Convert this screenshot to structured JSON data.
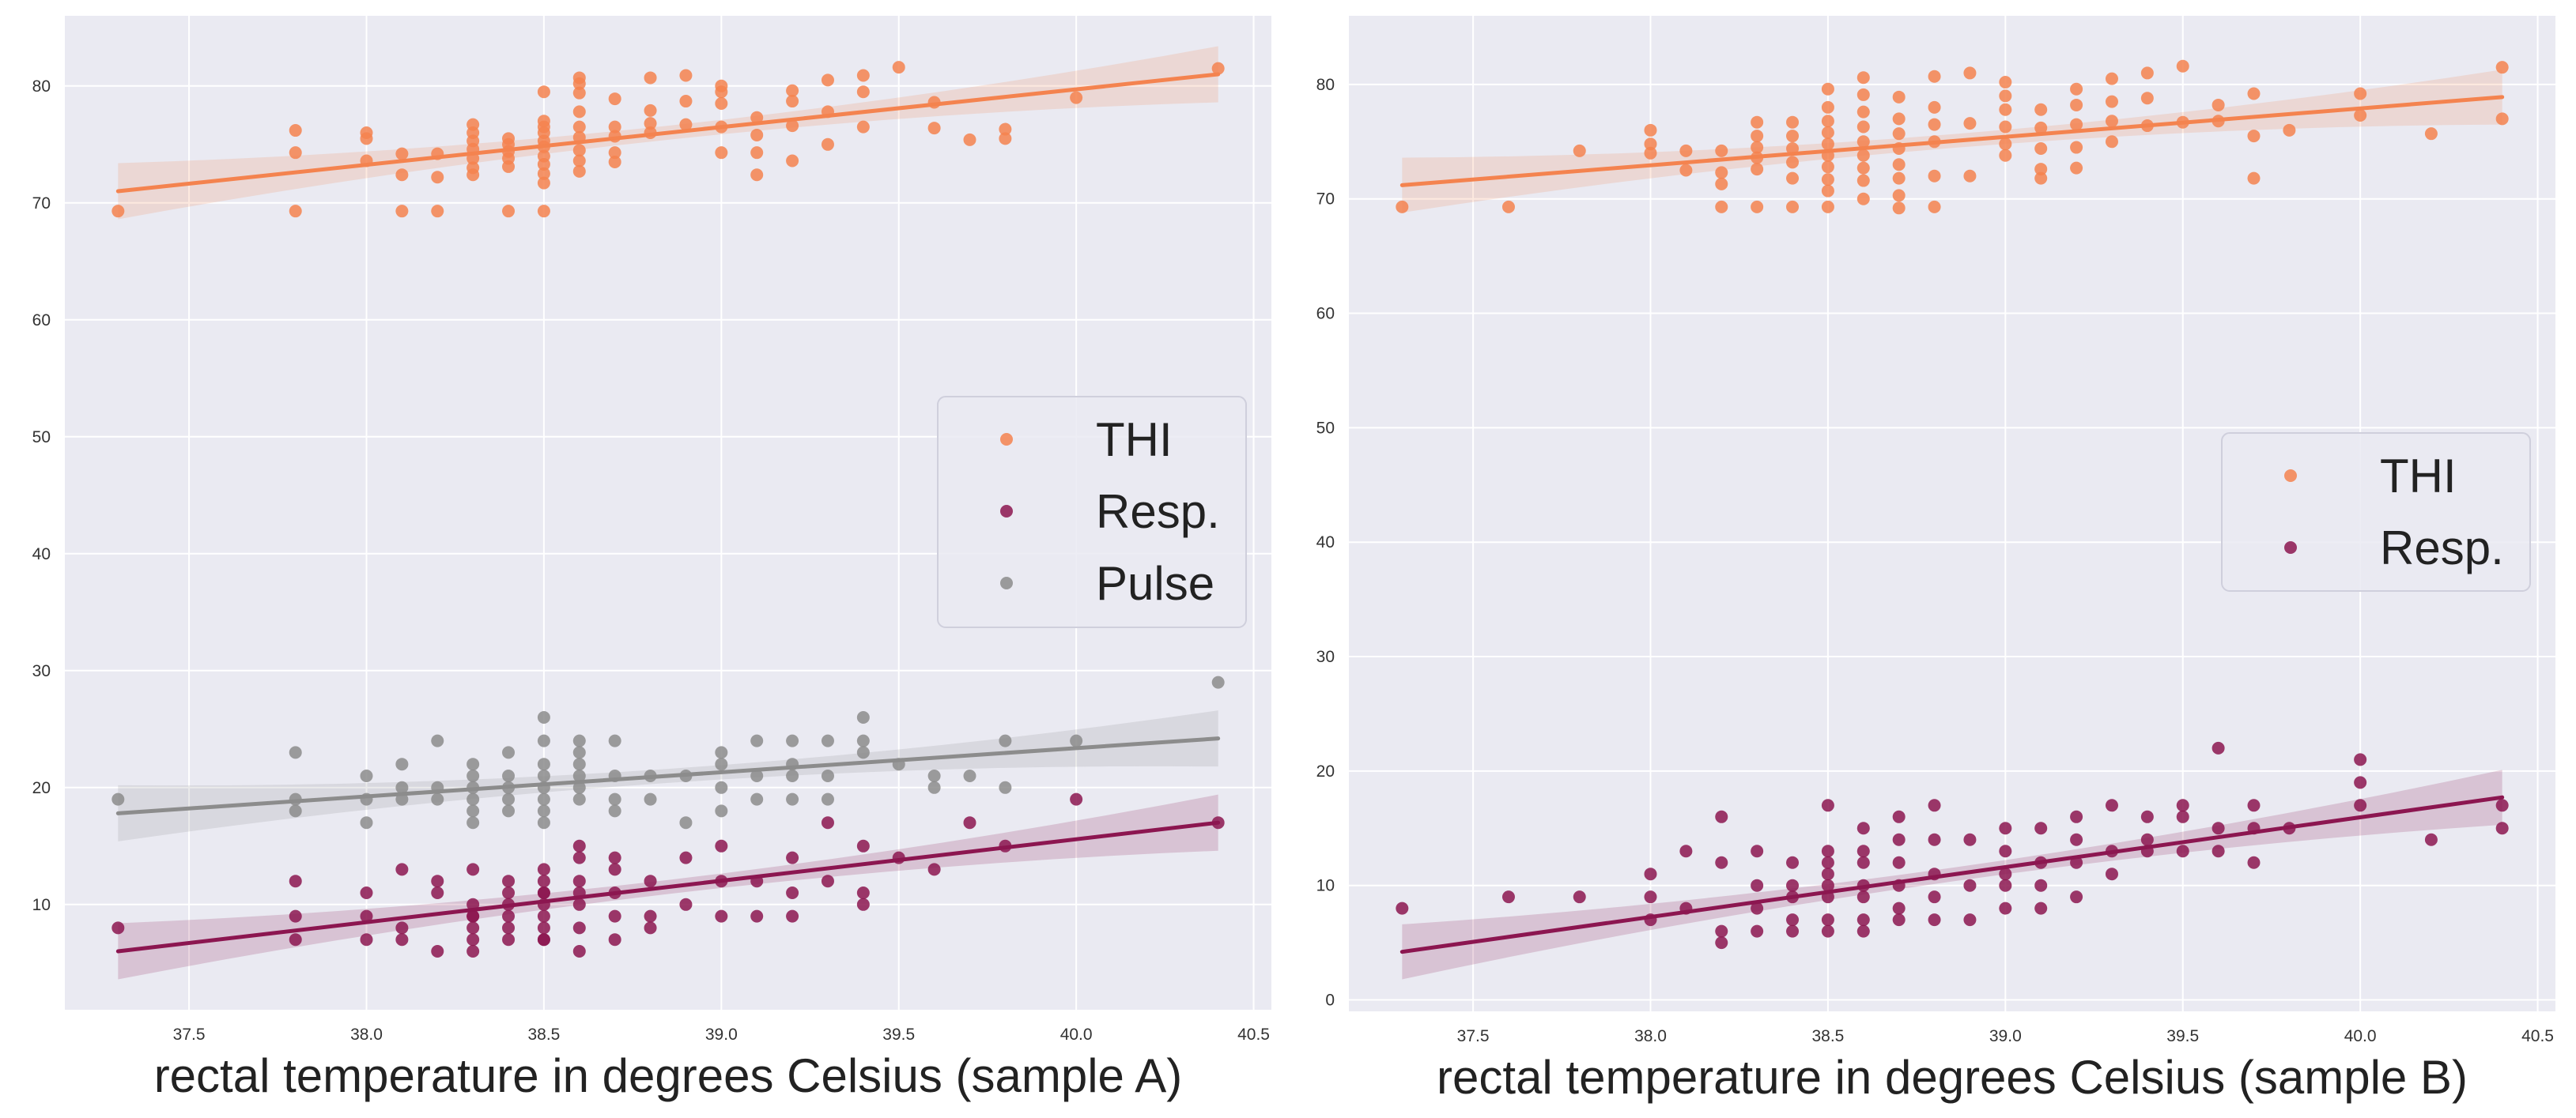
{
  "chart_data": [
    {
      "type": "scatter",
      "xlabel": "rectal temperature in degrees Celsius (sample A)",
      "ylabel": "",
      "xlim": [
        37.15,
        40.55
      ],
      "ylim": [
        1,
        86
      ],
      "xticks": [
        37.5,
        38.0,
        38.5,
        39.0,
        39.5,
        40.0,
        40.5
      ],
      "xtick_labels": [
        "37.5",
        "38.0",
        "38.5",
        "39.0",
        "39.5",
        "40.0",
        "40.5"
      ],
      "yticks": [
        10,
        20,
        30,
        40,
        50,
        60,
        70,
        80
      ],
      "ytick_labels": [
        "10",
        "20",
        "30",
        "40",
        "50",
        "60",
        "70",
        "80"
      ],
      "grid": true,
      "legend_position": "center-right",
      "series": [
        {
          "name": "THI",
          "color": "#f4834f",
          "regression": {
            "x": [
              37.3,
              40.4
            ],
            "y": [
              71.0,
              81.0
            ]
          },
          "x": [
            37.3,
            37.8,
            37.8,
            37.8,
            38.0,
            38.0,
            38.0,
            38.1,
            38.1,
            38.1,
            38.2,
            38.2,
            38.2,
            38.3,
            38.3,
            38.3,
            38.3,
            38.3,
            38.3,
            38.3,
            38.4,
            38.4,
            38.4,
            38.4,
            38.4,
            38.4,
            38.5,
            38.5,
            38.5,
            38.5,
            38.5,
            38.5,
            38.5,
            38.5,
            38.5,
            38.5,
            38.5,
            38.6,
            38.6,
            38.6,
            38.6,
            38.6,
            38.6,
            38.6,
            38.6,
            38.6,
            38.7,
            38.7,
            38.7,
            38.7,
            38.7,
            38.8,
            38.8,
            38.8,
            38.8,
            38.9,
            38.9,
            38.9,
            39.0,
            39.0,
            39.0,
            39.0,
            39.0,
            39.1,
            39.1,
            39.1,
            39.1,
            39.2,
            39.2,
            39.2,
            39.2,
            39.3,
            39.3,
            39.3,
            39.4,
            39.4,
            39.4,
            39.5,
            39.6,
            39.6,
            39.7,
            39.8,
            39.8,
            40.0,
            40.4
          ],
          "y": [
            69.3,
            76.2,
            74.3,
            69.3,
            76.0,
            75.5,
            73.6,
            74.2,
            72.4,
            69.3,
            74.2,
            72.2,
            69.3,
            76.7,
            76.0,
            75.3,
            74.6,
            73.8,
            73.0,
            72.4,
            75.5,
            75.0,
            74.4,
            73.8,
            73.1,
            69.3,
            79.5,
            77.0,
            76.5,
            76.0,
            75.3,
            74.8,
            74.0,
            73.3,
            72.5,
            71.7,
            69.3,
            80.7,
            80.2,
            79.4,
            77.8,
            76.5,
            75.6,
            74.5,
            73.6,
            72.7,
            78.9,
            76.5,
            75.7,
            74.3,
            73.5,
            80.7,
            77.9,
            76.8,
            76.0,
            80.9,
            78.7,
            76.7,
            80.0,
            79.5,
            78.5,
            76.5,
            74.3,
            77.3,
            75.8,
            74.3,
            72.4,
            79.6,
            78.7,
            76.6,
            73.6,
            80.5,
            77.8,
            75.0,
            80.9,
            79.5,
            76.5,
            81.6,
            78.6,
            76.4,
            75.4,
            76.3,
            75.5,
            79.0,
            81.5
          ]
        },
        {
          "name": "Resp.",
          "color": "#8c1650",
          "regression": {
            "x": [
              37.3,
              40.4
            ],
            "y": [
              6.0,
              17.0
            ]
          },
          "x": [
            37.3,
            37.8,
            37.8,
            37.8,
            38.0,
            38.0,
            38.0,
            38.1,
            38.1,
            38.1,
            38.2,
            38.2,
            38.2,
            38.3,
            38.3,
            38.3,
            38.3,
            38.3,
            38.3,
            38.3,
            38.4,
            38.4,
            38.4,
            38.4,
            38.4,
            38.4,
            38.5,
            38.5,
            38.5,
            38.5,
            38.5,
            38.5,
            38.5,
            38.5,
            38.5,
            38.6,
            38.6,
            38.6,
            38.6,
            38.6,
            38.6,
            38.6,
            38.7,
            38.7,
            38.7,
            38.7,
            38.7,
            38.8,
            38.8,
            38.8,
            38.9,
            38.9,
            39.0,
            39.0,
            39.0,
            39.1,
            39.1,
            39.2,
            39.2,
            39.2,
            39.3,
            39.3,
            39.4,
            39.4,
            39.4,
            39.5,
            39.6,
            39.7,
            39.8,
            40.0,
            40.4
          ],
          "y": [
            8,
            12,
            9,
            7,
            11,
            9,
            7,
            13,
            8,
            7,
            12,
            11,
            6,
            13,
            10,
            9,
            8,
            7,
            6,
            9,
            12,
            11,
            10,
            9,
            8,
            7,
            13,
            12,
            11,
            10,
            9,
            8,
            7,
            7,
            11,
            15,
            14,
            12,
            11,
            10,
            8,
            6,
            14,
            13,
            11,
            9,
            7,
            12,
            9,
            8,
            14,
            10,
            15,
            12,
            9,
            12,
            9,
            14,
            11,
            9,
            17,
            12,
            15,
            11,
            10,
            14,
            13,
            17,
            15,
            19,
            17
          ]
        },
        {
          "name": "Pulse",
          "color": "#8c8c8c",
          "regression": {
            "x": [
              37.3,
              40.4
            ],
            "y": [
              17.8,
              24.2
            ]
          },
          "x": [
            37.3,
            37.8,
            37.8,
            37.8,
            38.0,
            38.0,
            38.0,
            38.1,
            38.1,
            38.1,
            38.2,
            38.2,
            38.2,
            38.3,
            38.3,
            38.3,
            38.3,
            38.3,
            38.3,
            38.4,
            38.4,
            38.4,
            38.4,
            38.4,
            38.5,
            38.5,
            38.5,
            38.5,
            38.5,
            38.5,
            38.5,
            38.5,
            38.6,
            38.6,
            38.6,
            38.6,
            38.6,
            38.6,
            38.7,
            38.7,
            38.7,
            38.7,
            38.8,
            38.8,
            38.9,
            38.9,
            39.0,
            39.0,
            39.0,
            39.0,
            39.1,
            39.1,
            39.1,
            39.2,
            39.2,
            39.2,
            39.2,
            39.3,
            39.3,
            39.3,
            39.4,
            39.4,
            39.4,
            39.5,
            39.6,
            39.6,
            39.7,
            39.8,
            39.8,
            40.0,
            40.4
          ],
          "y": [
            19,
            23,
            19,
            18,
            21,
            19,
            17,
            22,
            20,
            19,
            24,
            20,
            19,
            22,
            21,
            20,
            19,
            18,
            17,
            23,
            21,
            20,
            19,
            18,
            26,
            24,
            22,
            21,
            20,
            19,
            18,
            17,
            24,
            23,
            22,
            21,
            20,
            19,
            24,
            21,
            19,
            18,
            21,
            19,
            21,
            17,
            23,
            22,
            20,
            18,
            24,
            21,
            19,
            24,
            22,
            21,
            19,
            24,
            21,
            19,
            26,
            24,
            23,
            22,
            21,
            20,
            21,
            24,
            20,
            24,
            29
          ]
        }
      ]
    },
    {
      "type": "scatter",
      "xlabel": "rectal temperature in degrees Celsius (sample B)",
      "ylabel": "",
      "xlim": [
        37.15,
        40.55
      ],
      "ylim": [
        -1,
        86
      ],
      "xticks": [
        37.5,
        38.0,
        38.5,
        39.0,
        39.5,
        40.0,
        40.5
      ],
      "xtick_labels": [
        "37.5",
        "38.0",
        "38.5",
        "39.0",
        "39.5",
        "40.0",
        "40.5"
      ],
      "yticks": [
        0,
        10,
        20,
        30,
        40,
        50,
        60,
        70,
        80
      ],
      "ytick_labels": [
        "0",
        "10",
        "20",
        "30",
        "40",
        "50",
        "60",
        "70",
        "80"
      ],
      "grid": true,
      "legend_position": "center-right",
      "series": [
        {
          "name": "THI",
          "color": "#f4834f",
          "regression": {
            "x": [
              37.3,
              40.4
            ],
            "y": [
              71.2,
              78.9
            ]
          },
          "x": [
            37.3,
            37.6,
            37.8,
            38.0,
            38.0,
            38.0,
            38.1,
            38.1,
            38.2,
            38.2,
            38.2,
            38.2,
            38.3,
            38.3,
            38.3,
            38.3,
            38.3,
            38.3,
            38.4,
            38.4,
            38.4,
            38.4,
            38.4,
            38.4,
            38.5,
            38.5,
            38.5,
            38.5,
            38.5,
            38.5,
            38.5,
            38.5,
            38.5,
            38.5,
            38.6,
            38.6,
            38.6,
            38.6,
            38.6,
            38.6,
            38.6,
            38.6,
            38.6,
            38.7,
            38.7,
            38.7,
            38.7,
            38.7,
            38.7,
            38.7,
            38.7,
            38.8,
            38.8,
            38.8,
            38.8,
            38.8,
            38.8,
            38.9,
            38.9,
            38.9,
            39.0,
            39.0,
            39.0,
            39.0,
            39.0,
            39.0,
            39.1,
            39.1,
            39.1,
            39.1,
            39.1,
            39.2,
            39.2,
            39.2,
            39.2,
            39.2,
            39.3,
            39.3,
            39.3,
            39.3,
            39.4,
            39.4,
            39.4,
            39.5,
            39.5,
            39.6,
            39.6,
            39.7,
            39.7,
            39.7,
            39.8,
            40.0,
            40.0,
            40.2,
            40.4,
            40.4
          ],
          "y": [
            69.3,
            69.3,
            74.2,
            76.0,
            74.8,
            74.0,
            74.2,
            72.5,
            74.2,
            72.3,
            71.3,
            69.3,
            76.7,
            75.5,
            74.5,
            73.6,
            72.6,
            69.3,
            76.7,
            75.5,
            74.4,
            73.2,
            71.8,
            69.3,
            79.6,
            78.0,
            76.8,
            75.8,
            74.8,
            73.8,
            72.8,
            71.7,
            70.7,
            69.3,
            80.6,
            79.1,
            77.6,
            76.3,
            75.0,
            73.8,
            72.7,
            71.6,
            70.0,
            78.9,
            77.0,
            75.7,
            74.4,
            73.0,
            71.8,
            70.3,
            69.2,
            80.7,
            78.0,
            76.5,
            75.0,
            72.0,
            69.3,
            81.0,
            76.6,
            72.0,
            80.2,
            79.0,
            77.8,
            76.3,
            74.8,
            73.8,
            77.8,
            76.2,
            74.4,
            72.6,
            71.8,
            79.6,
            78.2,
            76.5,
            74.5,
            72.7,
            80.5,
            78.5,
            76.8,
            75.0,
            81.0,
            78.8,
            76.4,
            81.6,
            76.7,
            78.2,
            76.8,
            79.2,
            75.5,
            71.8,
            76.0,
            79.2,
            77.3,
            75.7,
            81.5,
            77.0
          ]
        },
        {
          "name": "Resp.",
          "color": "#8c1650",
          "regression": {
            "x": [
              37.3,
              40.4
            ],
            "y": [
              4.2,
              17.7
            ]
          },
          "x": [
            37.3,
            37.6,
            37.8,
            38.0,
            38.0,
            38.0,
            38.1,
            38.1,
            38.2,
            38.2,
            38.2,
            38.2,
            38.3,
            38.3,
            38.3,
            38.3,
            38.4,
            38.4,
            38.4,
            38.4,
            38.4,
            38.5,
            38.5,
            38.5,
            38.5,
            38.5,
            38.5,
            38.5,
            38.5,
            38.6,
            38.6,
            38.6,
            38.6,
            38.6,
            38.6,
            38.6,
            38.7,
            38.7,
            38.7,
            38.7,
            38.7,
            38.7,
            38.8,
            38.8,
            38.8,
            38.8,
            38.8,
            38.9,
            38.9,
            38.9,
            39.0,
            39.0,
            39.0,
            39.0,
            39.0,
            39.1,
            39.1,
            39.1,
            39.1,
            39.2,
            39.2,
            39.2,
            39.2,
            39.3,
            39.3,
            39.3,
            39.4,
            39.4,
            39.4,
            39.5,
            39.5,
            39.5,
            39.6,
            39.6,
            39.6,
            39.7,
            39.7,
            39.7,
            39.8,
            40.0,
            40.0,
            40.0,
            40.2,
            40.4,
            40.4
          ],
          "y": [
            8,
            9,
            9,
            11,
            9,
            7,
            13,
            8,
            16,
            12,
            6,
            5,
            13,
            10,
            8,
            6,
            12,
            10,
            9,
            7,
            6,
            17,
            13,
            12,
            11,
            10,
            9,
            7,
            6,
            15,
            13,
            12,
            10,
            9,
            7,
            6,
            16,
            14,
            12,
            10,
            8,
            7,
            17,
            14,
            11,
            9,
            7,
            14,
            10,
            7,
            15,
            13,
            11,
            10,
            8,
            15,
            12,
            10,
            8,
            16,
            14,
            12,
            9,
            17,
            13,
            11,
            16,
            14,
            13,
            17,
            16,
            13,
            22,
            15,
            13,
            17,
            15,
            12,
            15,
            21,
            19,
            17,
            14,
            17,
            15
          ]
        }
      ]
    }
  ]
}
